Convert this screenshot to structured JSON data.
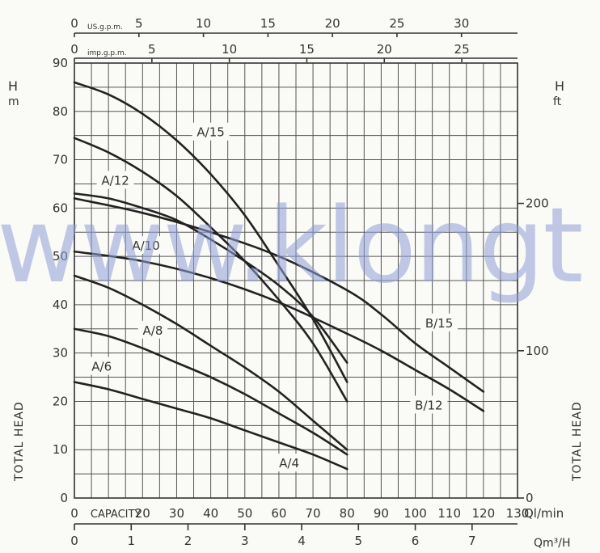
{
  "chart_data": {
    "type": "line",
    "axes": {
      "x_primary": {
        "unit": "Ql/min",
        "range": [
          0,
          130
        ],
        "ticks": [
          0,
          10,
          20,
          30,
          40,
          50,
          60,
          70,
          80,
          90,
          100,
          110,
          120,
          130
        ],
        "tick_label_words": {
          "10": "CAPACITY"
        }
      },
      "x_m3h": {
        "unit": "Qm³/H",
        "ticks": [
          0,
          1,
          2,
          3,
          4,
          5,
          6,
          7
        ]
      },
      "x_usgpm": {
        "unit": "US.g.p.m.",
        "ticks": [
          0,
          5,
          10,
          15,
          20,
          25,
          30
        ]
      },
      "x_impgpm": {
        "unit": "imp.g.p.m.",
        "ticks": [
          0,
          5,
          10,
          15,
          20,
          25
        ]
      },
      "y_left": {
        "label": "TOTAL HEAD",
        "unit_top": "H",
        "unit_sub": "m",
        "range": [
          0,
          90
        ],
        "ticks": [
          0,
          10,
          20,
          30,
          40,
          50,
          60,
          70,
          80,
          90
        ]
      },
      "y_right": {
        "label": "TOTAL HEAD",
        "unit_top": "H",
        "unit_sub": "ft",
        "ticks": [
          0,
          100,
          200
        ]
      }
    },
    "grid": true,
    "series": [
      {
        "name": "A/15",
        "x": [
          0,
          10,
          20,
          30,
          40,
          50,
          60,
          70,
          80
        ],
        "y": [
          86,
          83.5,
          79.5,
          74,
          67,
          58.5,
          48,
          37,
          24
        ]
      },
      {
        "name": "A/12",
        "x": [
          0,
          10,
          20,
          30,
          40,
          50,
          60,
          70,
          80
        ],
        "y": [
          74.5,
          71.5,
          67.5,
          62.5,
          56,
          49,
          41,
          32,
          20
        ]
      },
      {
        "name": "A/10",
        "x": [
          0,
          10,
          20,
          30,
          40,
          50,
          60,
          70,
          80
        ],
        "y": [
          63,
          62,
          60,
          57.5,
          53.5,
          49,
          44,
          37.5,
          28
        ]
      },
      {
        "name": "A/8",
        "x": [
          0,
          10,
          20,
          30,
          40,
          50,
          60,
          70,
          80
        ],
        "y": [
          46,
          43.5,
          40,
          36,
          31.5,
          27,
          22,
          16,
          10
        ]
      },
      {
        "name": "A/6",
        "x": [
          0,
          10,
          20,
          30,
          40,
          50,
          60,
          70,
          80
        ],
        "y": [
          35,
          33.5,
          31,
          28,
          25,
          21.5,
          17.5,
          13.5,
          9
        ]
      },
      {
        "name": "A/4",
        "x": [
          0,
          10,
          20,
          30,
          40,
          50,
          60,
          70,
          80
        ],
        "y": [
          24,
          22.5,
          20.5,
          18.5,
          16.5,
          14,
          11.5,
          9,
          6
        ]
      },
      {
        "name": "B/15",
        "x": [
          0,
          20,
          40,
          60,
          80,
          90,
          100,
          110,
          120
        ],
        "y": [
          62,
          59,
          55,
          50,
          43,
          38,
          32,
          27,
          22
        ]
      },
      {
        "name": "B/12",
        "x": [
          0,
          20,
          40,
          60,
          80,
          90,
          100,
          110,
          120
        ],
        "y": [
          51,
          49,
          45.5,
          40.5,
          34,
          30.5,
          26.5,
          22.5,
          18
        ]
      }
    ],
    "watermark": "www.klongt"
  },
  "colors": {
    "curve": "#222222",
    "grid": "#555555",
    "watermark": "#8f9fd6"
  }
}
